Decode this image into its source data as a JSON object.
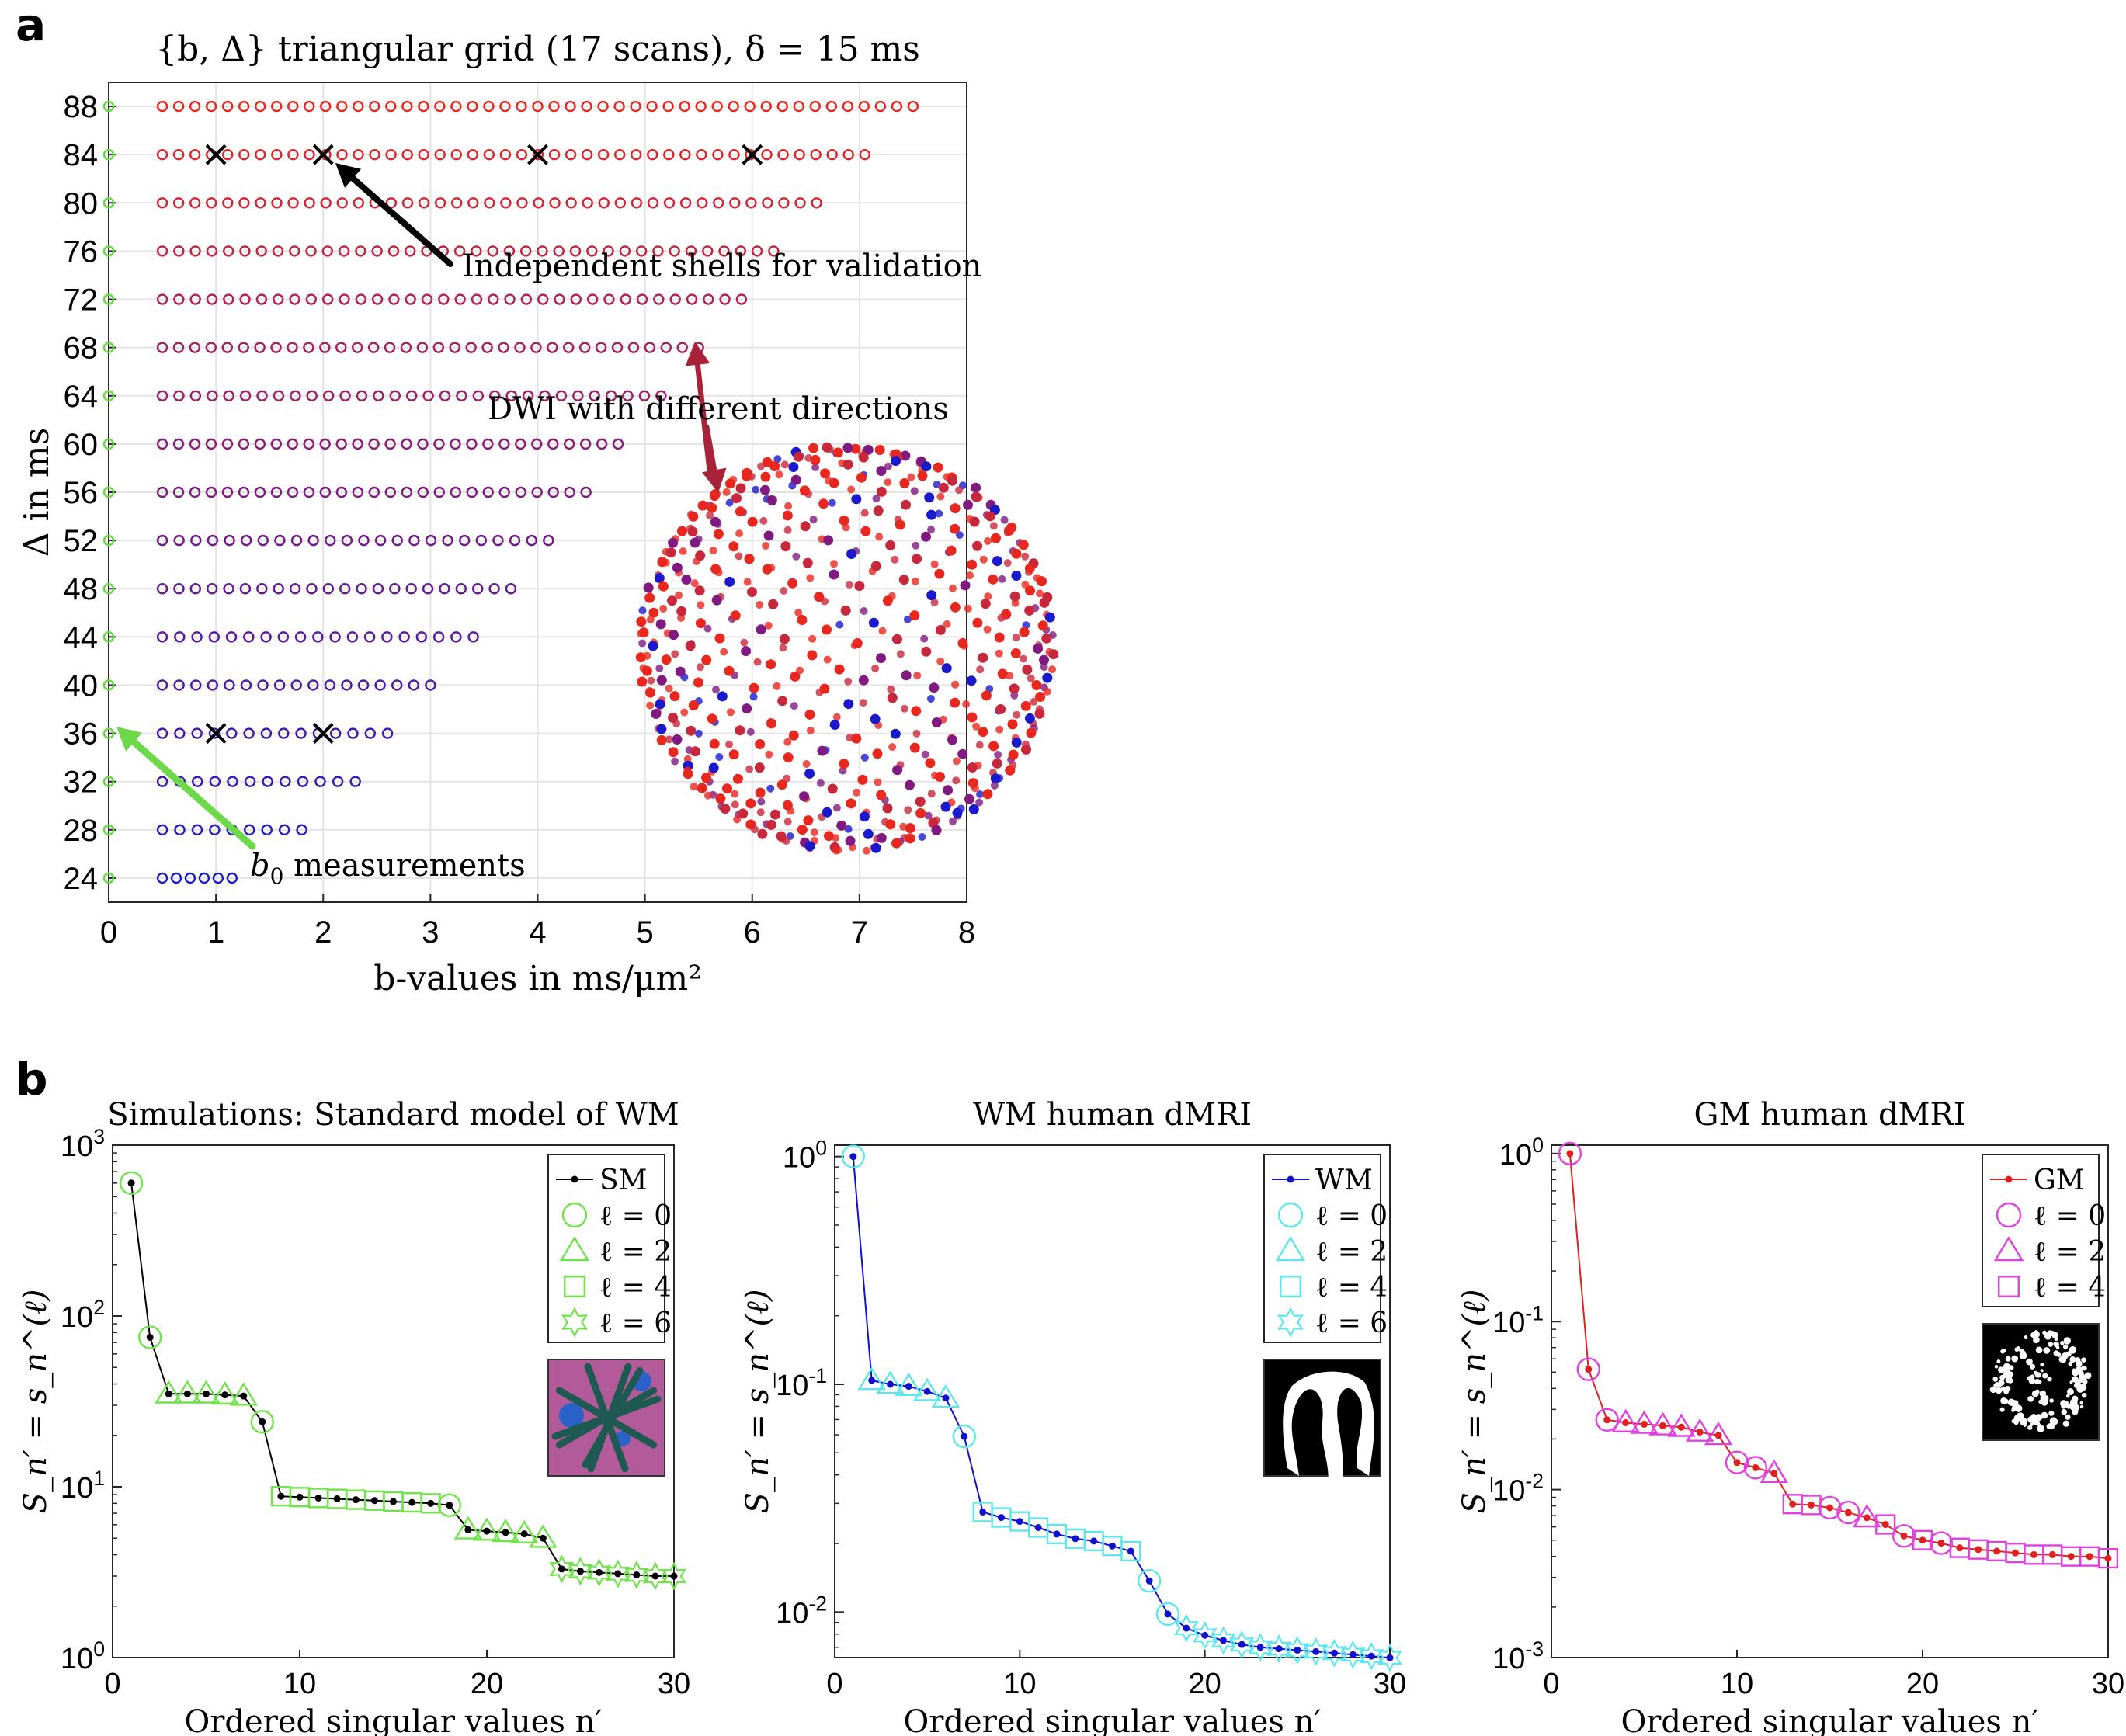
{
  "panel_labels": {
    "a": "a",
    "b": "b"
  },
  "chart_data": [
    {
      "type": "scatter",
      "title": "{b, Δ} triangular grid (17 scans), δ = 15 ms",
      "xlabel": "b-values in ms/μm²",
      "ylabel": "Δ in ms",
      "xlim": [
        0,
        8
      ],
      "ylim": [
        22,
        90
      ],
      "x_ticks": [
        0,
        1,
        2,
        3,
        4,
        5,
        6,
        7,
        8
      ],
      "y_ticks": [
        24,
        28,
        32,
        36,
        40,
        44,
        48,
        52,
        56,
        60,
        64,
        68,
        72,
        76,
        80,
        84,
        88
      ],
      "grid": true,
      "shells": [
        {
          "delta": 24,
          "b_max": 1.15,
          "n_points": 6
        },
        {
          "delta": 28,
          "b_max": 1.8,
          "n_points": 9
        },
        {
          "delta": 32,
          "b_max": 2.3,
          "n_points": 12
        },
        {
          "delta": 36,
          "b_max": 2.6,
          "n_points": 14
        },
        {
          "delta": 40,
          "b_max": 3.0,
          "n_points": 17
        },
        {
          "delta": 44,
          "b_max": 3.4,
          "n_points": 19
        },
        {
          "delta": 48,
          "b_max": 3.75,
          "n_points": 22
        },
        {
          "delta": 52,
          "b_max": 4.1,
          "n_points": 24
        },
        {
          "delta": 56,
          "b_max": 4.45,
          "n_points": 27
        },
        {
          "delta": 60,
          "b_max": 4.75,
          "n_points": 29
        },
        {
          "delta": 64,
          "b_max": 5.15,
          "n_points": 31
        },
        {
          "delta": 68,
          "b_max": 5.5,
          "n_points": 34
        },
        {
          "delta": 72,
          "b_max": 5.9,
          "n_points": 36
        },
        {
          "delta": 76,
          "b_max": 6.2,
          "n_points": 38
        },
        {
          "delta": 80,
          "b_max": 6.6,
          "n_points": 41
        },
        {
          "delta": 84,
          "b_max": 7.05,
          "n_points": 44
        },
        {
          "delta": 88,
          "b_max": 7.5,
          "n_points": 47
        }
      ],
      "b0_measurements": [
        24,
        28,
        32,
        36,
        40,
        44,
        48,
        52,
        56,
        60,
        64,
        68,
        72,
        76,
        80,
        84,
        88
      ],
      "validation_shells": [
        {
          "b": 1,
          "delta": 84
        },
        {
          "b": 2,
          "delta": 84
        },
        {
          "b": 4,
          "delta": 84
        },
        {
          "b": 6,
          "delta": 84
        },
        {
          "b": 1,
          "delta": 36
        },
        {
          "b": 2,
          "delta": 36
        }
      ],
      "annotations": {
        "validation": "Independent shells for validation",
        "dwi": "DWI with different directions",
        "b0_base": "b",
        "b0_sub": "0",
        "b0_rest": "measurements"
      },
      "colors": {
        "low": "#1a1acc",
        "high": "#e8281e",
        "b0": "#6cd84a",
        "validation": "#000000",
        "dwi_arrow": "#a8233a"
      }
    },
    {
      "type": "line",
      "title": "Simulations: Standard model of WM",
      "xlabel": "Ordered singular values n′",
      "ylabel": "S_n′ = s_n^(ℓ)",
      "xlim": [
        0,
        30
      ],
      "x_ticks": [
        0,
        10,
        20,
        30
      ],
      "y_scale": "log",
      "ylim_exp": [
        0,
        3
      ],
      "y_tick_labels": [
        {
          "base": "10",
          "exp": "0"
        },
        {
          "base": "10",
          "exp": "1"
        },
        {
          "base": "10",
          "exp": "2"
        },
        {
          "base": "10",
          "exp": "3"
        }
      ],
      "series": [
        {
          "name": "SM",
          "color": "#000000",
          "x": [
            1,
            2,
            3,
            4,
            5,
            6,
            7,
            8,
            9,
            10,
            11,
            12,
            13,
            14,
            15,
            16,
            17,
            18,
            19,
            20,
            21,
            22,
            23,
            24,
            25,
            26,
            27,
            28,
            29,
            30
          ],
          "values": [
            600,
            75,
            35,
            35,
            35,
            34.5,
            34,
            24,
            8.8,
            8.7,
            8.6,
            8.5,
            8.4,
            8.3,
            8.2,
            8.1,
            8.0,
            7.8,
            5.6,
            5.5,
            5.4,
            5.3,
            5.0,
            3.3,
            3.2,
            3.15,
            3.1,
            3.05,
            3.0,
            3.0
          ]
        }
      ],
      "markers": [
        {
          "label": "ℓ = 0",
          "symbol": "circle",
          "idx": [
            1,
            2,
            8,
            18
          ]
        },
        {
          "label": "ℓ = 2",
          "symbol": "triangle",
          "idx": [
            3,
            4,
            5,
            6,
            7,
            19,
            20,
            21,
            22,
            23
          ]
        },
        {
          "label": "ℓ = 4",
          "symbol": "square",
          "idx": [
            9,
            10,
            11,
            12,
            13,
            14,
            15,
            16,
            17
          ]
        },
        {
          "label": "ℓ = 6",
          "symbol": "star",
          "idx": [
            24,
            25,
            26,
            27,
            28,
            29,
            30
          ]
        }
      ],
      "marker_color": "#6fe34a",
      "inset": "sm"
    },
    {
      "type": "line",
      "title": "WM human dMRI",
      "xlabel": "Ordered singular values n′",
      "ylabel": "S_n′ = s_n^(ℓ)",
      "xlim": [
        0,
        30
      ],
      "x_ticks": [
        0,
        10,
        20,
        30
      ],
      "y_scale": "log",
      "ylim_exp": [
        -2.2,
        0.05
      ],
      "y_tick_labels": [
        {
          "base": "10",
          "exp": "-2"
        },
        {
          "base": "10",
          "exp": "-1"
        },
        {
          "base": "10",
          "exp": "0"
        }
      ],
      "series": [
        {
          "name": "WM",
          "color": "#1010d0",
          "x": [
            1,
            2,
            3,
            4,
            5,
            6,
            7,
            8,
            9,
            10,
            11,
            12,
            13,
            14,
            15,
            16,
            17,
            18,
            19,
            20,
            21,
            22,
            23,
            24,
            25,
            26,
            27,
            28,
            29,
            30
          ],
          "values": [
            1.0,
            0.104,
            0.1,
            0.098,
            0.093,
            0.087,
            0.059,
            0.0275,
            0.026,
            0.025,
            0.0235,
            0.022,
            0.021,
            0.0205,
            0.0195,
            0.0185,
            0.0137,
            0.0098,
            0.0085,
            0.0079,
            0.0075,
            0.0072,
            0.007,
            0.0069,
            0.0068,
            0.0067,
            0.0066,
            0.0065,
            0.0064,
            0.0063
          ]
        }
      ],
      "markers": [
        {
          "label": "ℓ = 0",
          "symbol": "circle",
          "idx": [
            1,
            7,
            17,
            18
          ]
        },
        {
          "label": "ℓ = 2",
          "symbol": "triangle",
          "idx": [
            2,
            3,
            4,
            5,
            6
          ]
        },
        {
          "label": "ℓ = 4",
          "symbol": "square",
          "idx": [
            8,
            9,
            10,
            11,
            12,
            13,
            14,
            15,
            16
          ]
        },
        {
          "label": "ℓ = 6",
          "symbol": "star",
          "idx": [
            19,
            20,
            21,
            22,
            23,
            24,
            25,
            26,
            27,
            28,
            29,
            30
          ]
        }
      ],
      "marker_color": "#5ee6ee",
      "inset": "wm"
    },
    {
      "type": "line",
      "title": "GM human dMRI",
      "xlabel": "Ordered singular values n′",
      "ylabel": "S_n′ = s_n^(ℓ)",
      "xlim": [
        0,
        30
      ],
      "x_ticks": [
        0,
        10,
        20,
        30
      ],
      "y_scale": "log",
      "ylim_exp": [
        -3,
        0.05
      ],
      "y_tick_labels": [
        {
          "base": "10",
          "exp": "-3"
        },
        {
          "base": "10",
          "exp": "-2"
        },
        {
          "base": "10",
          "exp": "-1"
        },
        {
          "base": "10",
          "exp": "0"
        }
      ],
      "series": [
        {
          "name": "GM",
          "color": "#e02020",
          "x": [
            1,
            2,
            3,
            4,
            5,
            6,
            7,
            8,
            9,
            10,
            11,
            12,
            13,
            14,
            15,
            16,
            17,
            18,
            19,
            20,
            21,
            22,
            23,
            24,
            25,
            26,
            27,
            28,
            29,
            30
          ],
          "values": [
            1.0,
            0.052,
            0.026,
            0.025,
            0.0245,
            0.024,
            0.0235,
            0.022,
            0.021,
            0.0145,
            0.0135,
            0.0125,
            0.0082,
            0.0081,
            0.0078,
            0.0073,
            0.0068,
            0.0062,
            0.0053,
            0.005,
            0.0048,
            0.0045,
            0.0044,
            0.0043,
            0.0042,
            0.0041,
            0.0041,
            0.004,
            0.004,
            0.0039
          ]
        }
      ],
      "markers": [
        {
          "label": "ℓ = 0",
          "symbol": "circle",
          "idx": [
            1,
            2,
            3,
            10,
            11,
            15,
            16,
            19,
            21
          ]
        },
        {
          "label": "ℓ = 2",
          "symbol": "triangle",
          "idx": [
            4,
            5,
            6,
            7,
            8,
            9,
            12,
            17
          ]
        },
        {
          "label": "ℓ = 4",
          "symbol": "square",
          "idx": [
            13,
            14,
            18,
            20,
            22,
            23,
            24,
            25,
            26,
            27,
            28,
            29,
            30
          ]
        }
      ],
      "marker_color": "#e040e0",
      "inset": "gm"
    }
  ]
}
